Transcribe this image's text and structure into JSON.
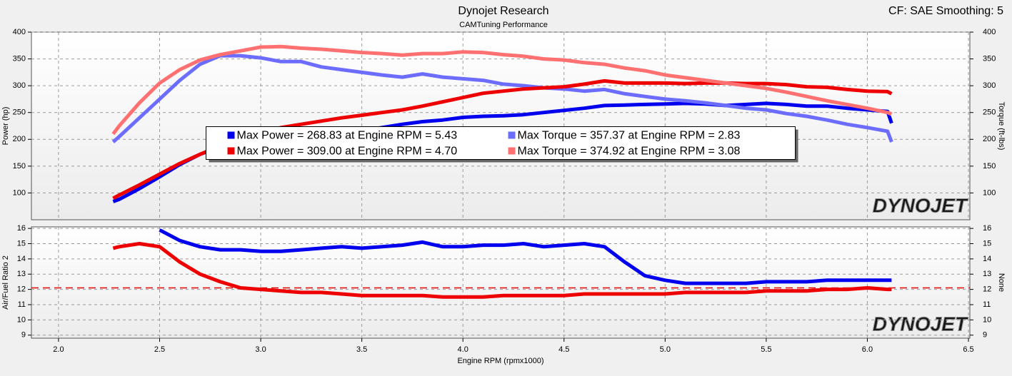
{
  "chart_data": [
    {
      "type": "line",
      "title": "Dynojet Research",
      "subtitle": "CAMTuning Performance",
      "annotation": "CF: SAE Smoothing: 5",
      "ylabel": "Power (hp)",
      "y2label": "Torque (ft-lbs)",
      "watermark": "DYNOJET",
      "legend": "center",
      "grid": true,
      "xlim": [
        1.866,
        6.507
      ],
      "ylim": [
        50,
        400
      ],
      "yticks": [
        100,
        150,
        200,
        250,
        300,
        350,
        400
      ],
      "y2lim": [
        50,
        400
      ],
      "y2ticks": [
        100,
        150,
        200,
        250,
        300,
        350,
        400
      ],
      "x": [
        2.27,
        2.3,
        2.4,
        2.5,
        2.6,
        2.7,
        2.8,
        2.9,
        3.0,
        3.1,
        3.2,
        3.3,
        3.4,
        3.5,
        3.6,
        3.7,
        3.8,
        3.9,
        4.0,
        4.1,
        4.2,
        4.3,
        4.4,
        4.5,
        4.6,
        4.7,
        4.8,
        4.9,
        5.0,
        5.1,
        5.2,
        5.3,
        5.4,
        5.5,
        5.6,
        5.7,
        5.8,
        5.9,
        6.0,
        6.1,
        6.12
      ],
      "series": [
        {
          "name": "Max Power = 268.83 at Engine RPM = 5.43",
          "color": "#0000ee",
          "values": [
            84,
            88,
            108,
            130,
            153,
            172,
            186,
            195,
            200,
            203,
            208,
            210,
            212,
            216,
            222,
            228,
            233,
            236,
            241,
            243,
            244,
            246,
            250,
            254,
            258,
            263,
            264,
            265,
            266,
            267,
            266,
            263,
            265,
            267,
            265,
            262,
            262,
            258,
            255,
            252,
            230
          ]
        },
        {
          "name": "Max Torque = 357.37 at Engine RPM = 2.83",
          "color": "#6c6cff",
          "axis": "y2",
          "values": [
            195,
            205,
            240,
            275,
            310,
            340,
            356,
            356,
            352,
            345,
            345,
            335,
            330,
            325,
            320,
            316,
            322,
            316,
            313,
            310,
            303,
            300,
            296,
            294,
            290,
            293,
            285,
            280,
            275,
            272,
            268,
            263,
            258,
            255,
            248,
            243,
            236,
            228,
            222,
            215,
            195
          ]
        },
        {
          "name": "Max Power = 309.00 at Engine RPM = 4.70",
          "color": "#ee0000",
          "values": [
            90,
            96,
            115,
            135,
            155,
            172,
            188,
            202,
            212,
            222,
            228,
            234,
            240,
            245,
            250,
            255,
            262,
            270,
            278,
            286,
            290,
            294,
            296,
            298,
            303,
            309,
            305,
            305,
            305,
            304,
            305,
            305,
            304,
            304,
            302,
            298,
            297,
            293,
            290,
            289,
            285
          ]
        },
        {
          "name": "Max Torque = 374.92 at Engine RPM = 3.08",
          "color": "#ff7070",
          "axis": "y2",
          "values": [
            210,
            225,
            268,
            305,
            330,
            348,
            358,
            365,
            372,
            373,
            370,
            368,
            365,
            362,
            360,
            357,
            360,
            360,
            363,
            362,
            358,
            355,
            350,
            348,
            343,
            340,
            333,
            328,
            320,
            315,
            310,
            305,
            300,
            295,
            288,
            280,
            272,
            265,
            258,
            250,
            247
          ]
        }
      ]
    },
    {
      "type": "line",
      "xlabel": "Engine RPM (rpmx1000)",
      "ylabel": "Air/Fuel Ratio 2",
      "y2label": "None",
      "watermark": "DYNOJET",
      "grid": true,
      "xlim": [
        1.866,
        6.507
      ],
      "xticks": [
        {
          "value": 2.0,
          "label": "2.0"
        },
        2.5,
        {
          "value": 3.0,
          "label": "3.0"
        },
        3.5,
        {
          "value": 4.0,
          "label": "4.0"
        },
        4.5,
        {
          "value": 5.0,
          "label": "5.0"
        },
        5.5,
        {
          "value": 6.0,
          "label": "6.0"
        },
        6.5
      ],
      "ylim": [
        8.8,
        16.1
      ],
      "yticks": [
        9,
        10,
        11,
        12,
        13,
        14,
        15,
        16
      ],
      "y2lim": [
        8.8,
        16.1
      ],
      "y2ticks": [
        9,
        10,
        11,
        12,
        13,
        14,
        15,
        16
      ],
      "hline": {
        "value": 12.1,
        "color": "#e00000"
      },
      "x": [
        2.27,
        2.3,
        2.4,
        2.5,
        2.6,
        2.7,
        2.8,
        2.9,
        3.0,
        3.1,
        3.2,
        3.3,
        3.4,
        3.5,
        3.6,
        3.7,
        3.8,
        3.9,
        4.0,
        4.1,
        4.2,
        4.3,
        4.4,
        4.5,
        4.6,
        4.7,
        4.8,
        4.9,
        5.0,
        5.1,
        5.2,
        5.3,
        5.4,
        5.5,
        5.6,
        5.7,
        5.8,
        5.9,
        6.0,
        6.1,
        6.12
      ],
      "series": [
        {
          "color": "#0000ee",
          "values": [
            null,
            null,
            null,
            15.9,
            15.2,
            14.8,
            14.6,
            14.6,
            14.5,
            14.5,
            14.6,
            14.7,
            14.8,
            14.7,
            14.8,
            14.9,
            15.1,
            14.8,
            14.8,
            14.9,
            14.9,
            15.0,
            14.8,
            14.9,
            15.0,
            14.8,
            13.8,
            12.9,
            12.6,
            12.4,
            12.4,
            12.4,
            12.4,
            12.5,
            12.5,
            12.5,
            12.6,
            12.6,
            12.6,
            12.6,
            12.6
          ]
        },
        {
          "color": "#ee0000",
          "values": [
            14.7,
            14.8,
            15.0,
            14.8,
            13.8,
            13.0,
            12.5,
            12.1,
            12.0,
            11.9,
            11.8,
            11.8,
            11.7,
            11.6,
            11.6,
            11.6,
            11.6,
            11.5,
            11.5,
            11.5,
            11.6,
            11.6,
            11.6,
            11.6,
            11.7,
            11.7,
            11.7,
            11.7,
            11.7,
            11.8,
            11.8,
            11.8,
            11.8,
            11.9,
            11.9,
            11.9,
            12.0,
            12.0,
            12.1,
            12.0,
            12.0
          ]
        }
      ]
    }
  ]
}
